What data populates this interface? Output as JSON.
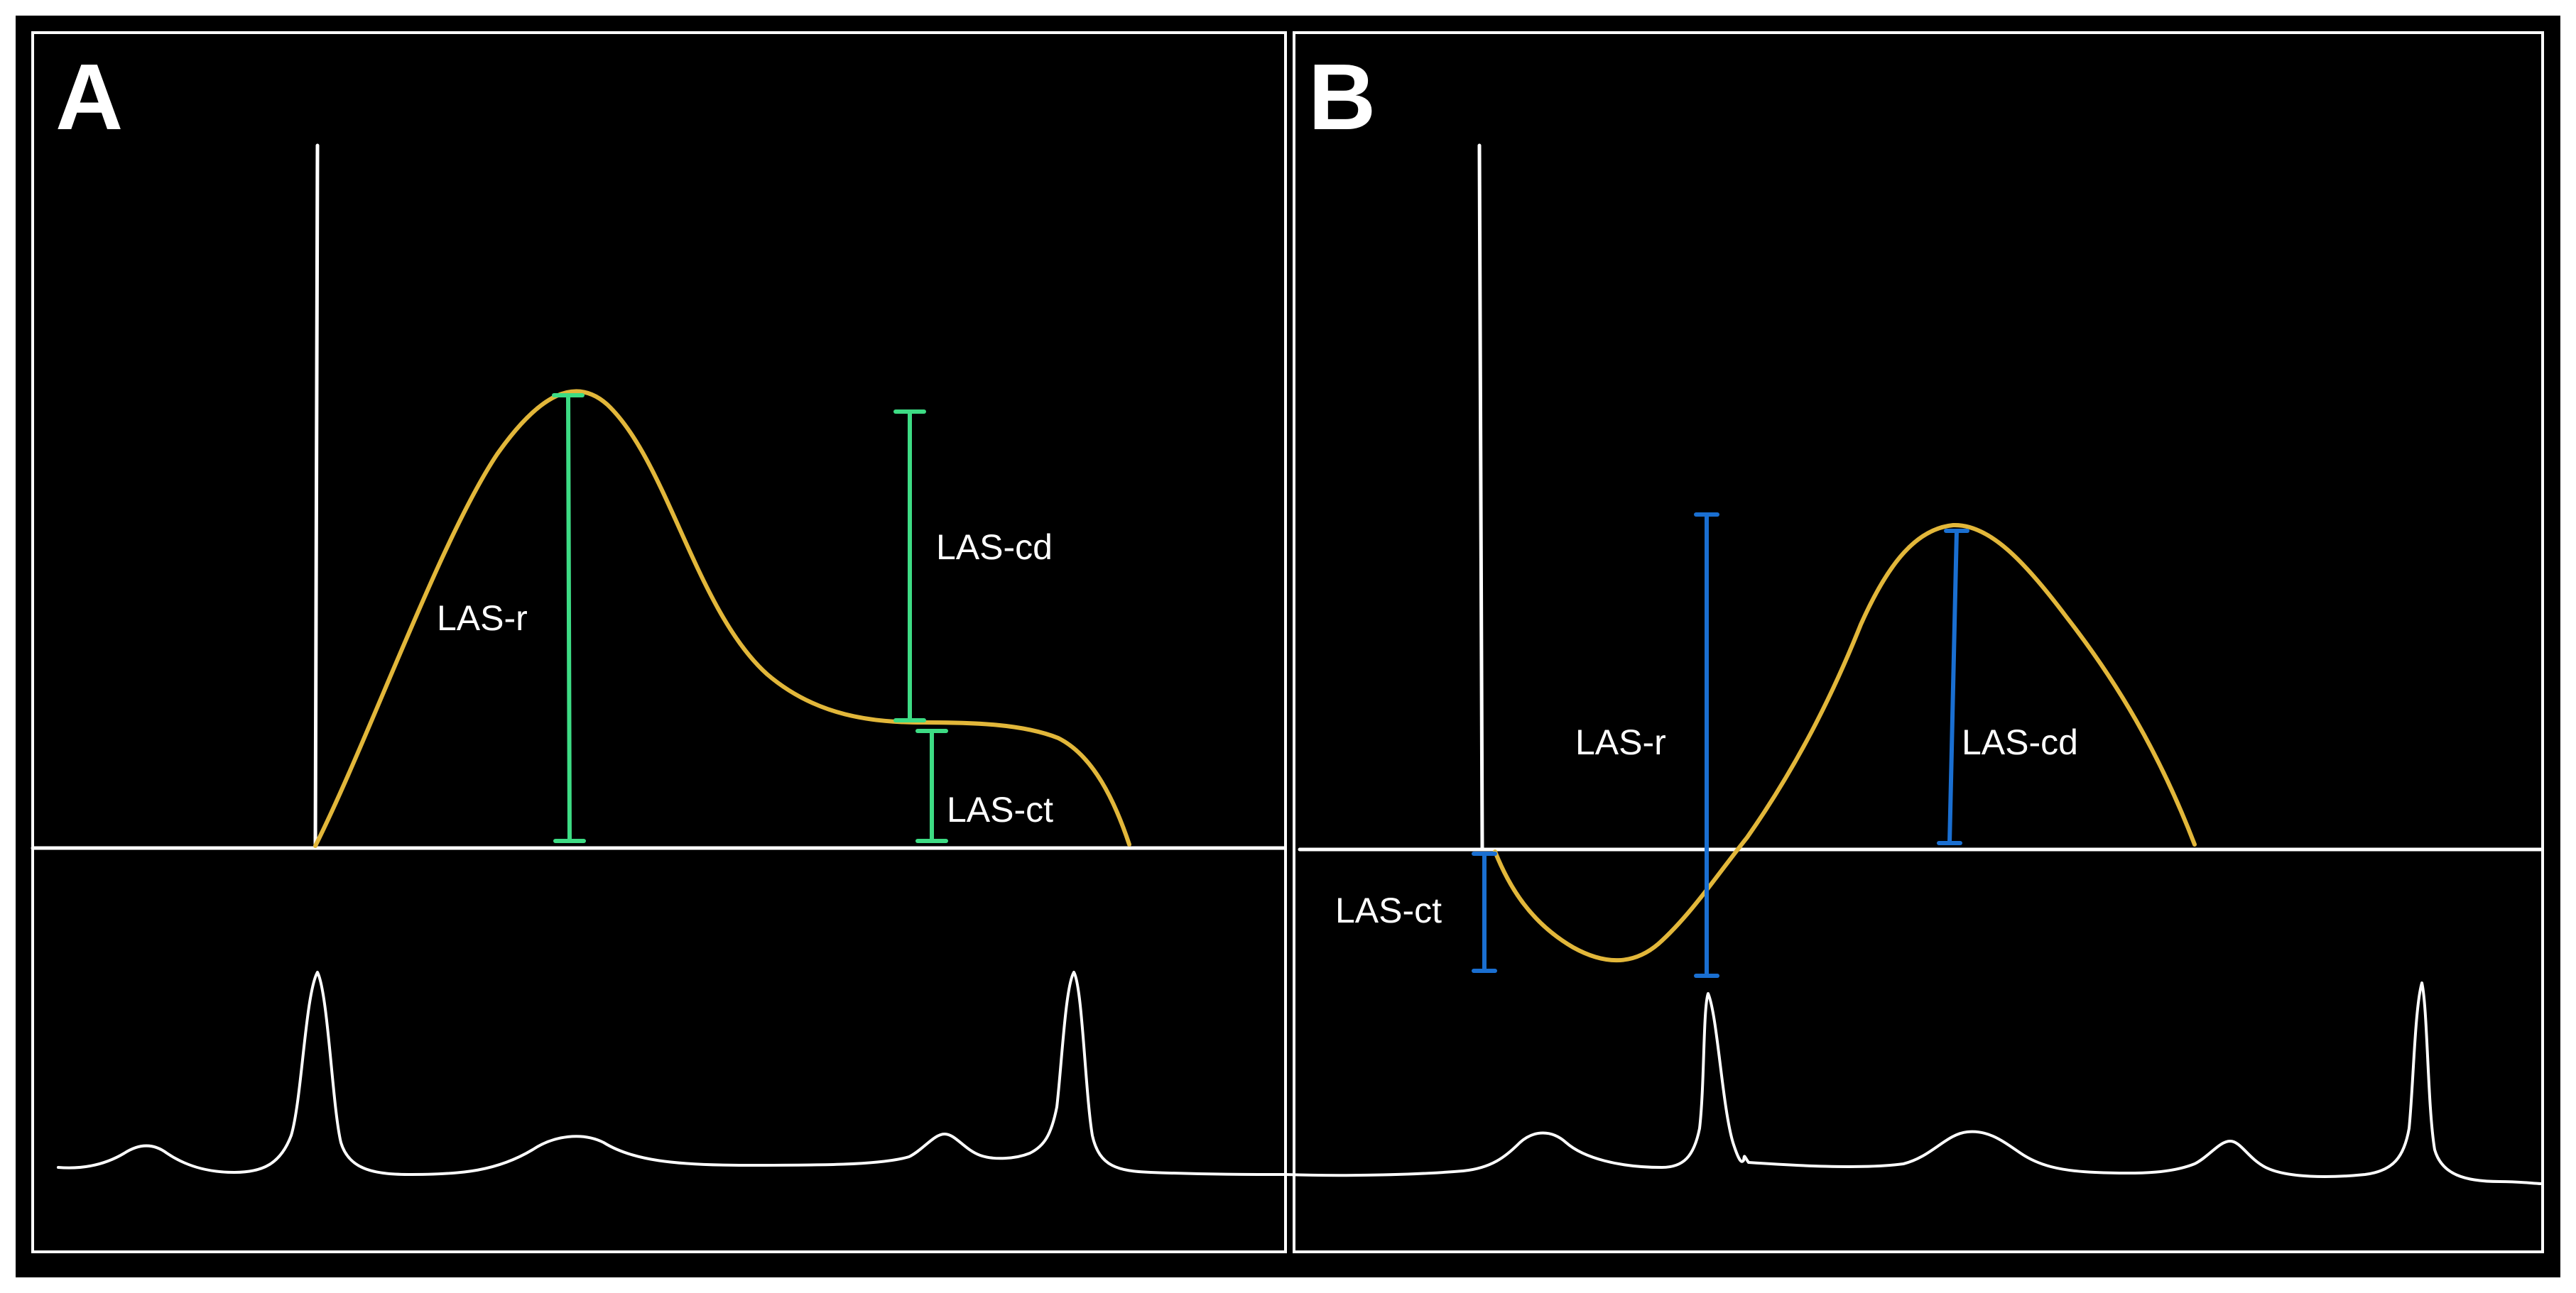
{
  "figure": {
    "colors": {
      "background": "#000000",
      "frame": "#ffffff",
      "strain_curve": "#e2b73a",
      "panel_a_measure": "#3ddc84",
      "panel_b_measure": "#1a6fd1",
      "ecg_trace": "#ffffff"
    },
    "panels": [
      {
        "letter": "A",
        "measures": [
          {
            "label": "LAS-r"
          },
          {
            "label": "LAS-cd"
          },
          {
            "label": "LAS-ct"
          }
        ]
      },
      {
        "letter": "B",
        "measures": [
          {
            "label": "LAS-ct"
          },
          {
            "label": "LAS-r"
          },
          {
            "label": "LAS-cd"
          }
        ]
      }
    ]
  }
}
